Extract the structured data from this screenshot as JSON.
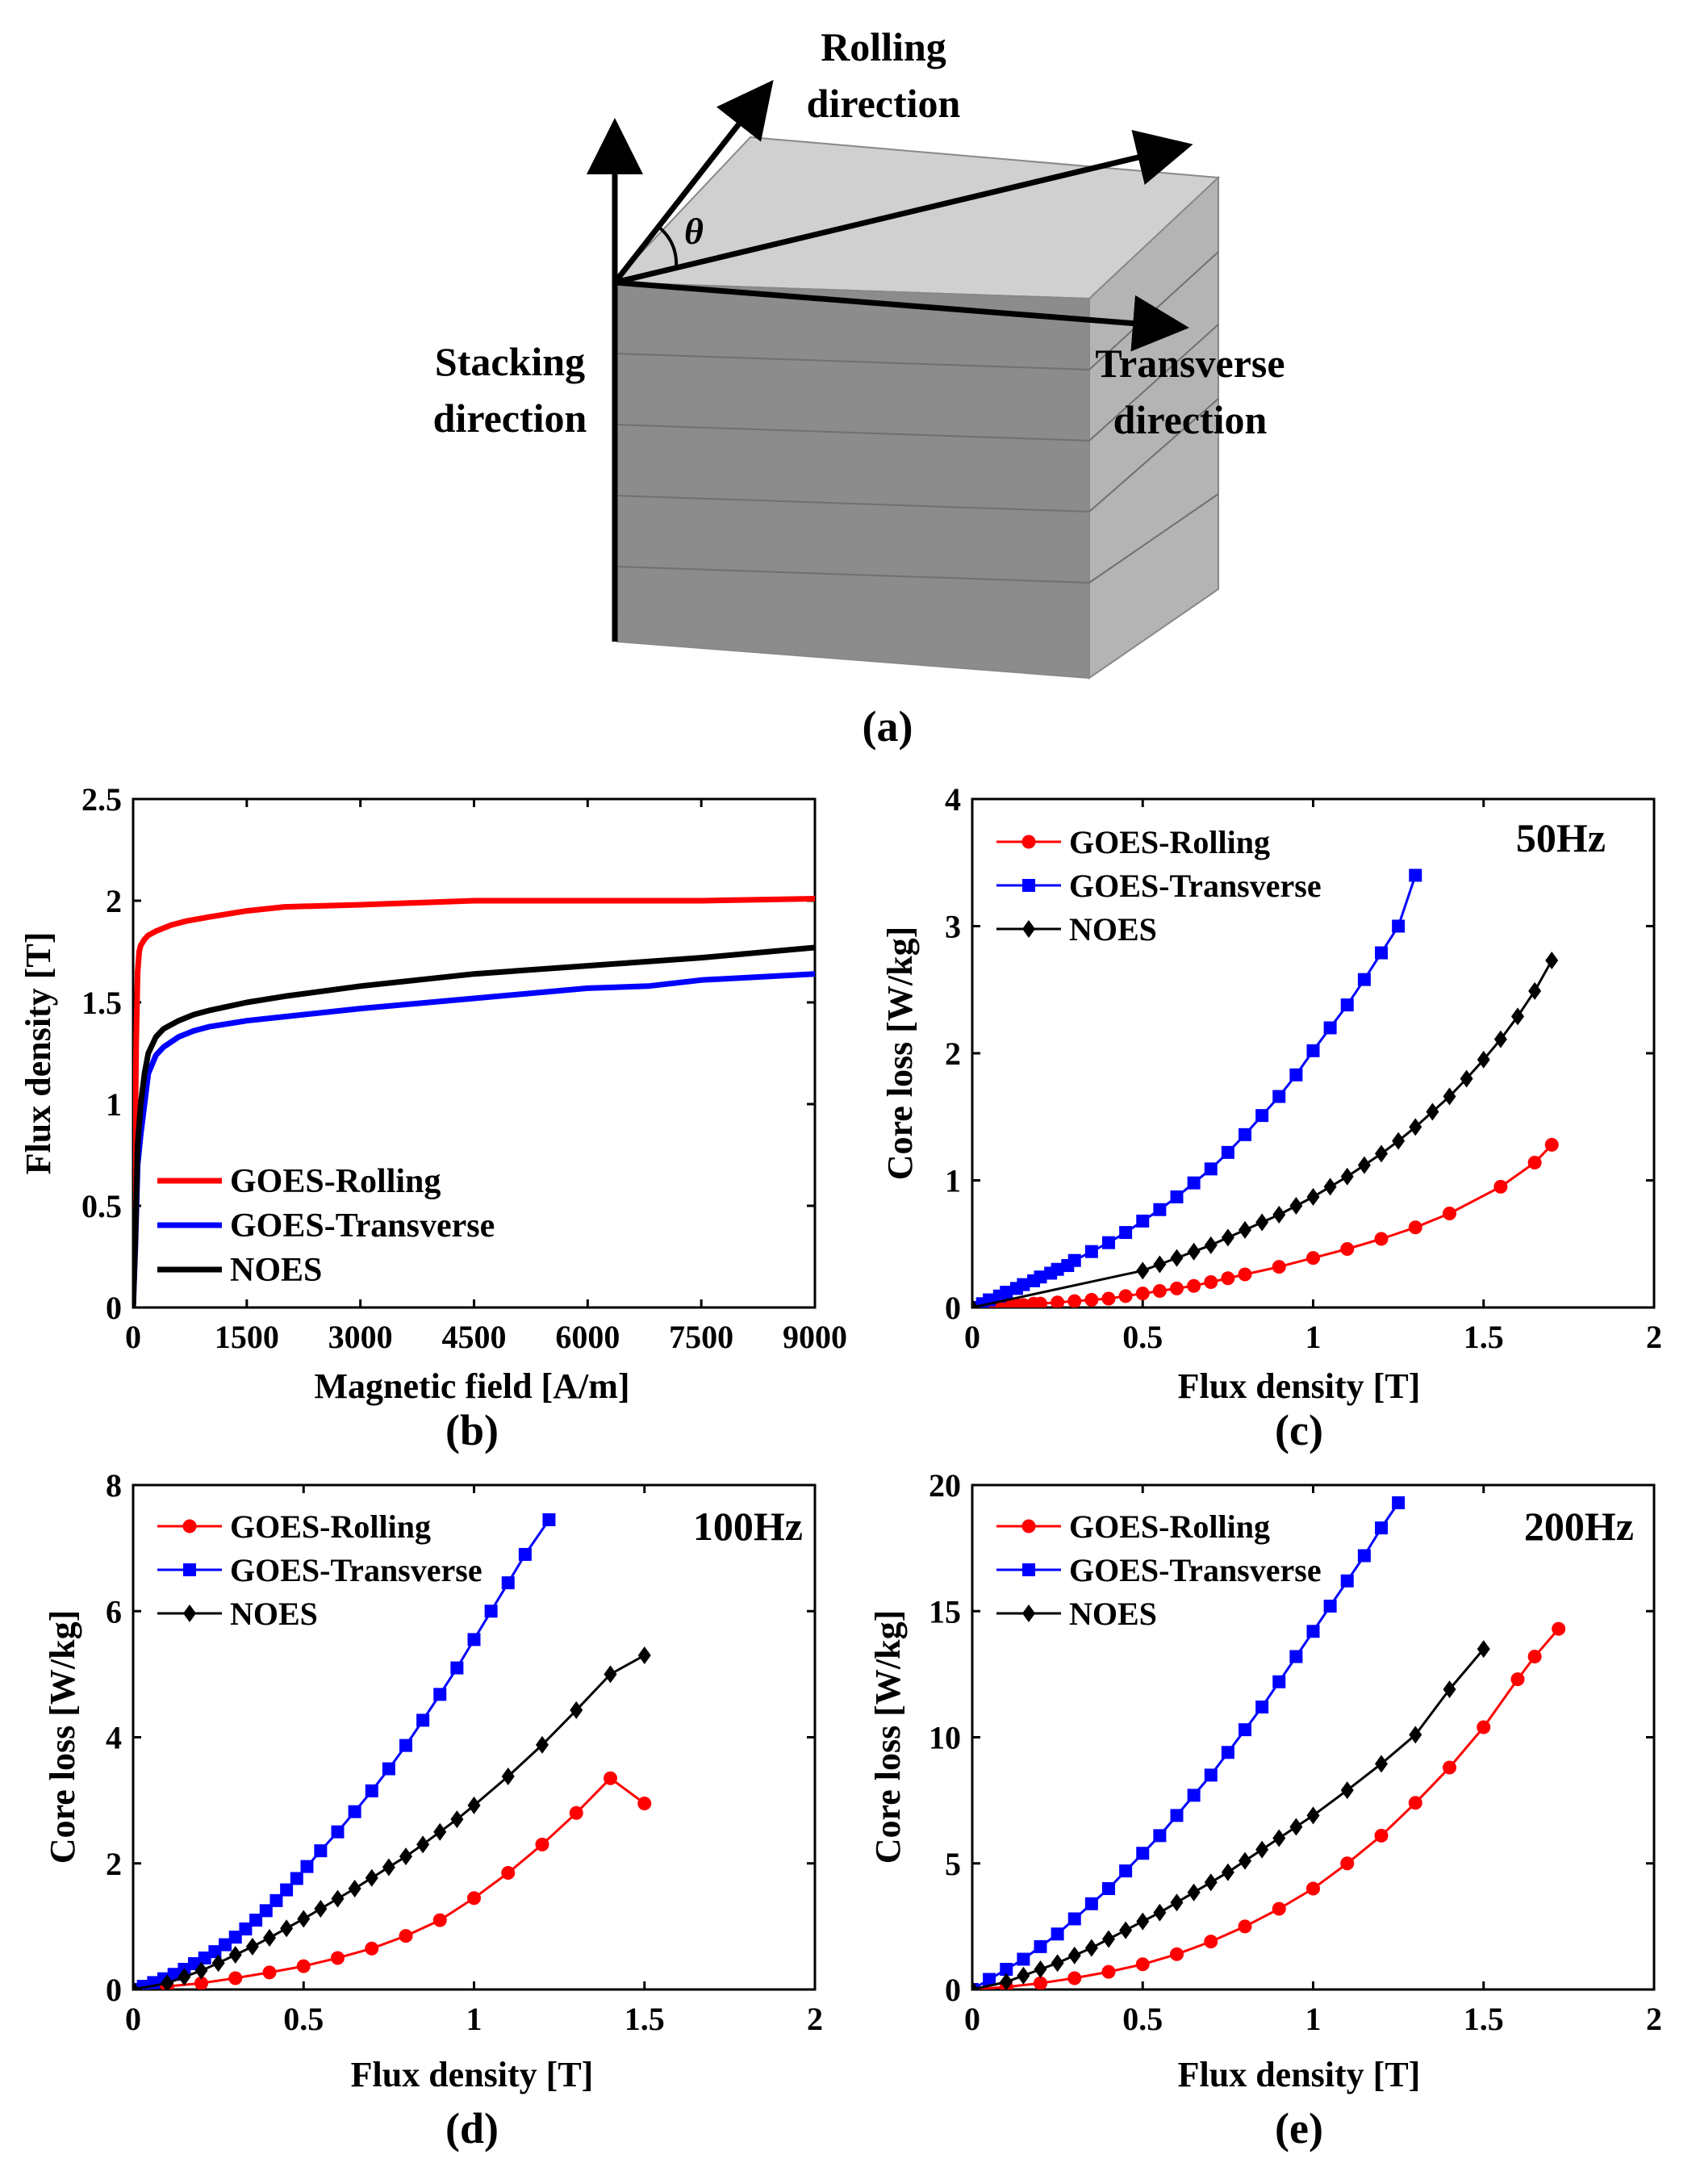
{
  "diagram": {
    "labels": {
      "rolling": [
        "Rolling",
        "direction"
      ],
      "stacking": [
        "Stacking",
        "direction"
      ],
      "transverse": [
        "Transverse",
        "direction"
      ],
      "angle": "θ"
    },
    "caption": "(a)"
  },
  "chart_data": [
    {
      "id": "b",
      "type": "line",
      "caption": "(b)",
      "xlabel": "Magnetic field [A/m]",
      "ylabel": "Flux density [T]",
      "xlim": [
        0,
        9000
      ],
      "ylim": [
        0,
        2.5
      ],
      "xticks": [
        0,
        1500,
        3000,
        4500,
        6000,
        7500,
        9000
      ],
      "yticks": [
        0,
        0.5,
        1,
        1.5,
        2,
        2.5
      ],
      "ytick_labels": [
        "0",
        "0.5",
        "1",
        "1.5",
        "2",
        "2.5"
      ],
      "legend": "bottom-left",
      "series": [
        {
          "name": "GOES-Rolling",
          "color": "#ff0000",
          "marker": "none",
          "x": [
            0,
            20,
            40,
            60,
            80,
            100,
            150,
            200,
            300,
            500,
            700,
            1000,
            1500,
            2000,
            3000,
            4500,
            6000,
            7500,
            9000
          ],
          "y": [
            0,
            0.6,
            1.3,
            1.65,
            1.75,
            1.78,
            1.81,
            1.83,
            1.85,
            1.88,
            1.9,
            1.92,
            1.95,
            1.97,
            1.98,
            2.0,
            2.0,
            2.0,
            2.01
          ]
        },
        {
          "name": "GOES-Transverse",
          "color": "#0000ff",
          "marker": "none",
          "x": [
            0,
            30,
            60,
            100,
            150,
            200,
            300,
            400,
            600,
            800,
            1000,
            1500,
            2000,
            3000,
            4500,
            6000,
            6800,
            7500,
            9000
          ],
          "y": [
            0,
            0.3,
            0.7,
            0.85,
            1.0,
            1.15,
            1.24,
            1.28,
            1.33,
            1.36,
            1.38,
            1.41,
            1.43,
            1.47,
            1.52,
            1.57,
            1.58,
            1.61,
            1.64
          ]
        },
        {
          "name": "NOES",
          "color": "#000000",
          "marker": "none",
          "x": [
            0,
            30,
            60,
            100,
            150,
            200,
            300,
            400,
            600,
            800,
            1000,
            1500,
            2000,
            3000,
            4500,
            6000,
            7500,
            9000
          ],
          "y": [
            0,
            0.35,
            0.8,
            1.0,
            1.15,
            1.25,
            1.33,
            1.37,
            1.41,
            1.44,
            1.46,
            1.5,
            1.53,
            1.58,
            1.64,
            1.68,
            1.72,
            1.77
          ]
        }
      ]
    },
    {
      "id": "c",
      "type": "line",
      "caption": "(c)",
      "annotation": "50Hz",
      "xlabel": "Flux density [T]",
      "ylabel": "Core loss [W/kg]",
      "xlim": [
        0,
        2
      ],
      "ylim": [
        0,
        4
      ],
      "xticks": [
        0,
        0.5,
        1,
        1.5,
        2
      ],
      "yticks": [
        0,
        1,
        2,
        3,
        4
      ],
      "ytick_labels": [
        "0",
        "1",
        "2",
        "3",
        "4"
      ],
      "legend": "top-left",
      "series": [
        {
          "name": "GOES-Rolling",
          "color": "#ff0000",
          "marker": "circle",
          "x": [
            0,
            0.05,
            0.08,
            0.1,
            0.13,
            0.15,
            0.18,
            0.2,
            0.25,
            0.3,
            0.35,
            0.4,
            0.45,
            0.5,
            0.55,
            0.6,
            0.65,
            0.7,
            0.75,
            0.8,
            0.9,
            1.0,
            1.1,
            1.2,
            1.3,
            1.4,
            1.55,
            1.65,
            1.7
          ],
          "y": [
            0,
            0.01,
            0.01,
            0.02,
            0.02,
            0.02,
            0.03,
            0.03,
            0.04,
            0.05,
            0.06,
            0.07,
            0.09,
            0.11,
            0.13,
            0.15,
            0.17,
            0.2,
            0.23,
            0.26,
            0.32,
            0.39,
            0.46,
            0.54,
            0.63,
            0.74,
            0.95,
            1.14,
            1.28
          ]
        },
        {
          "name": "GOES-Transverse",
          "color": "#0000ff",
          "marker": "square",
          "x": [
            0,
            0.03,
            0.05,
            0.08,
            0.1,
            0.13,
            0.15,
            0.18,
            0.2,
            0.23,
            0.25,
            0.28,
            0.3,
            0.35,
            0.4,
            0.45,
            0.5,
            0.55,
            0.6,
            0.65,
            0.7,
            0.75,
            0.8,
            0.85,
            0.9,
            0.95,
            1.0,
            1.05,
            1.1,
            1.15,
            1.2,
            1.25,
            1.3
          ],
          "y": [
            0,
            0.03,
            0.06,
            0.09,
            0.12,
            0.15,
            0.18,
            0.21,
            0.24,
            0.27,
            0.3,
            0.33,
            0.37,
            0.44,
            0.51,
            0.59,
            0.68,
            0.77,
            0.87,
            0.98,
            1.09,
            1.22,
            1.36,
            1.51,
            1.66,
            1.83,
            2.02,
            2.2,
            2.38,
            2.58,
            2.79,
            3.0,
            3.4
          ]
        },
        {
          "name": "NOES",
          "color": "#000000",
          "marker": "diamond",
          "x": [
            0,
            0.5,
            0.55,
            0.6,
            0.65,
            0.7,
            0.75,
            0.8,
            0.85,
            0.9,
            0.95,
            1.0,
            1.05,
            1.1,
            1.15,
            1.2,
            1.25,
            1.3,
            1.35,
            1.4,
            1.45,
            1.5,
            1.55,
            1.6,
            1.65,
            1.7
          ],
          "y": [
            0,
            0.29,
            0.34,
            0.39,
            0.44,
            0.49,
            0.55,
            0.61,
            0.67,
            0.73,
            0.8,
            0.87,
            0.95,
            1.03,
            1.12,
            1.21,
            1.31,
            1.42,
            1.54,
            1.66,
            1.8,
            1.95,
            2.11,
            2.29,
            2.49,
            2.73
          ]
        }
      ]
    },
    {
      "id": "d",
      "type": "line",
      "caption": "(d)",
      "annotation": "100Hz",
      "xlabel": "Flux density [T]",
      "ylabel": "Core loss [W/kg]",
      "xlim": [
        0,
        2
      ],
      "ylim": [
        0,
        8
      ],
      "xticks": [
        0,
        0.5,
        1,
        1.5,
        2
      ],
      "yticks": [
        0,
        2,
        4,
        6,
        8
      ],
      "ytick_labels": [
        "0",
        "2",
        "4",
        "6",
        "8"
      ],
      "legend": "top-left",
      "series": [
        {
          "name": "GOES-Rolling",
          "color": "#ff0000",
          "marker": "circle",
          "x": [
            0,
            0.1,
            0.2,
            0.3,
            0.4,
            0.5,
            0.6,
            0.7,
            0.8,
            0.9,
            1.0,
            1.1,
            1.2,
            1.3,
            1.4,
            1.5
          ],
          "y": [
            0,
            0.05,
            0.1,
            0.18,
            0.27,
            0.37,
            0.5,
            0.65,
            0.85,
            1.1,
            1.45,
            1.85,
            2.3,
            2.8,
            3.35,
            2.95
          ]
        },
        {
          "name": "GOES-Transverse",
          "color": "#0000ff",
          "marker": "square",
          "x": [
            0,
            0.03,
            0.06,
            0.09,
            0.12,
            0.15,
            0.18,
            0.21,
            0.24,
            0.27,
            0.3,
            0.33,
            0.36,
            0.39,
            0.42,
            0.45,
            0.48,
            0.51,
            0.55,
            0.6,
            0.65,
            0.7,
            0.75,
            0.8,
            0.85,
            0.9,
            0.95,
            1.0,
            1.05,
            1.1,
            1.15,
            1.22
          ],
          "y": [
            0,
            0.05,
            0.11,
            0.17,
            0.24,
            0.32,
            0.41,
            0.5,
            0.6,
            0.71,
            0.83,
            0.96,
            1.1,
            1.25,
            1.41,
            1.58,
            1.76,
            1.95,
            2.2,
            2.5,
            2.82,
            3.15,
            3.5,
            3.87,
            4.27,
            4.68,
            5.1,
            5.55,
            6.0,
            6.45,
            6.9,
            7.45
          ]
        },
        {
          "name": "NOES",
          "color": "#000000",
          "marker": "diamond",
          "x": [
            0,
            0.1,
            0.15,
            0.2,
            0.25,
            0.3,
            0.35,
            0.4,
            0.45,
            0.5,
            0.55,
            0.6,
            0.65,
            0.7,
            0.75,
            0.8,
            0.85,
            0.9,
            0.95,
            1.0,
            1.1,
            1.2,
            1.3,
            1.4,
            1.5
          ],
          "y": [
            0,
            0.1,
            0.2,
            0.3,
            0.42,
            0.55,
            0.68,
            0.82,
            0.97,
            1.12,
            1.28,
            1.44,
            1.6,
            1.77,
            1.94,
            2.11,
            2.3,
            2.5,
            2.7,
            2.92,
            3.38,
            3.88,
            4.43,
            5.0,
            5.3
          ]
        }
      ]
    },
    {
      "id": "e",
      "type": "line",
      "caption": "(e)",
      "annotation": "200Hz",
      "xlabel": "Flux density [T]",
      "ylabel": "Core loss [W/kg]",
      "xlim": [
        0,
        2
      ],
      "ylim": [
        0,
        20
      ],
      "xticks": [
        0,
        0.5,
        1,
        1.5,
        2
      ],
      "yticks": [
        0,
        5,
        10,
        15,
        20
      ],
      "ytick_labels": [
        "0",
        "5",
        "10",
        "15",
        "20"
      ],
      "legend": "top-left",
      "series": [
        {
          "name": "GOES-Rolling",
          "color": "#ff0000",
          "marker": "circle",
          "x": [
            0,
            0.1,
            0.2,
            0.3,
            0.4,
            0.5,
            0.6,
            0.7,
            0.8,
            0.9,
            1.0,
            1.1,
            1.2,
            1.3,
            1.4,
            1.5,
            1.6,
            1.65,
            1.72
          ],
          "y": [
            0,
            0.1,
            0.25,
            0.45,
            0.7,
            1.0,
            1.4,
            1.9,
            2.5,
            3.2,
            4.0,
            5.0,
            6.1,
            7.4,
            8.8,
            10.4,
            12.3,
            13.2,
            14.3
          ]
        },
        {
          "name": "GOES-Transverse",
          "color": "#0000ff",
          "marker": "square",
          "x": [
            0,
            0.05,
            0.1,
            0.15,
            0.2,
            0.25,
            0.3,
            0.35,
            0.4,
            0.45,
            0.5,
            0.55,
            0.6,
            0.65,
            0.7,
            0.75,
            0.8,
            0.85,
            0.9,
            0.95,
            1.0,
            1.05,
            1.1,
            1.15,
            1.2,
            1.25
          ],
          "y": [
            0,
            0.4,
            0.8,
            1.2,
            1.7,
            2.2,
            2.8,
            3.4,
            4.0,
            4.7,
            5.4,
            6.1,
            6.9,
            7.7,
            8.5,
            9.4,
            10.3,
            11.2,
            12.2,
            13.2,
            14.2,
            15.2,
            16.2,
            17.2,
            18.3,
            19.3
          ]
        },
        {
          "name": "NOES",
          "color": "#000000",
          "marker": "diamond",
          "x": [
            0,
            0.1,
            0.15,
            0.2,
            0.25,
            0.3,
            0.35,
            0.4,
            0.45,
            0.5,
            0.55,
            0.6,
            0.65,
            0.7,
            0.75,
            0.8,
            0.85,
            0.9,
            0.95,
            1.0,
            1.1,
            1.2,
            1.3,
            1.4,
            1.5
          ],
          "y": [
            0,
            0.3,
            0.55,
            0.8,
            1.05,
            1.35,
            1.65,
            2.0,
            2.35,
            2.7,
            3.05,
            3.45,
            3.85,
            4.25,
            4.65,
            5.1,
            5.55,
            6.0,
            6.45,
            6.9,
            7.9,
            8.95,
            10.1,
            11.9,
            13.5
          ]
        }
      ]
    }
  ]
}
